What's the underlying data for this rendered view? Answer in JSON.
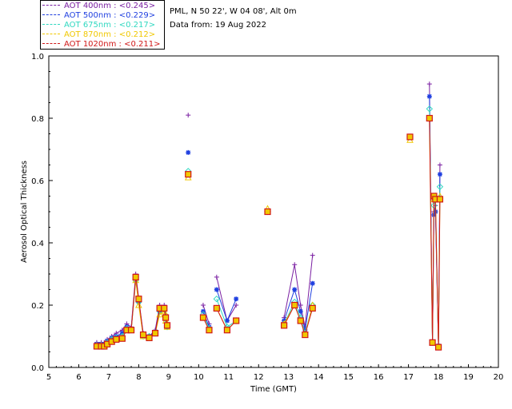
{
  "header": {
    "site_line": "PML, N 50 22', W 04 08', Alt 0m",
    "date_line": "Data from: 19 Aug 2022"
  },
  "chart_data": {
    "type": "line",
    "title": "",
    "xlabel": "Time (GMT)",
    "ylabel": "Aerosol Optical Thickness",
    "xlim": [
      5,
      20
    ],
    "ylim": [
      0.0,
      1.0
    ],
    "xticks": [
      "5",
      "6",
      "7",
      "8",
      "9",
      "10",
      "11",
      "12",
      "13",
      "14",
      "15",
      "16",
      "17",
      "18",
      "19",
      "20"
    ],
    "yticks": [
      "0.0",
      "0.2",
      "0.4",
      "0.6",
      "0.8",
      "1.0"
    ],
    "grid": false,
    "legend_position": "top-left",
    "series": [
      {
        "name": "AOT  400nm : <0.245>",
        "color": "#7a1fa2",
        "marker": "plus",
        "points": [
          [
            6.6,
            0.08
          ],
          [
            6.75,
            0.08
          ],
          [
            6.85,
            0.08
          ],
          [
            6.95,
            0.09
          ],
          [
            7.1,
            0.1
          ],
          [
            7.25,
            0.11
          ],
          [
            7.45,
            0.12
          ],
          [
            7.6,
            0.14
          ],
          [
            7.75,
            0.13
          ],
          [
            7.9,
            0.3
          ],
          [
            8.0,
            0.22
          ],
          [
            8.15,
            0.11
          ],
          [
            8.35,
            0.1
          ],
          [
            8.55,
            0.12
          ],
          [
            8.7,
            0.2
          ],
          [
            8.85,
            0.2
          ],
          [
            8.9,
            0.17
          ],
          [
            8.95,
            0.14
          ],
          null,
          [
            9.65,
            0.81
          ],
          null,
          [
            10.15,
            0.2
          ],
          [
            10.35,
            0.14
          ],
          null,
          [
            10.6,
            0.29
          ],
          [
            10.95,
            0.15
          ],
          [
            11.25,
            0.2
          ],
          null,
          [
            12.3,
            0.5
          ],
          null,
          [
            12.85,
            0.16
          ],
          [
            13.2,
            0.33
          ],
          [
            13.4,
            0.2
          ],
          [
            13.55,
            0.13
          ],
          [
            13.8,
            0.36
          ],
          null,
          [
            17.05,
            0.74
          ],
          null,
          [
            17.7,
            0.91
          ],
          [
            17.8,
            0.08
          ],
          [
            17.85,
            0.5
          ],
          [
            17.9,
            0.52
          ],
          [
            18.0,
            0.07
          ],
          [
            18.05,
            0.65
          ]
        ]
      },
      {
        "name": "AOT  500nm : <0.229>",
        "color": "#1f3fe0",
        "marker": "asterisk",
        "points": [
          [
            6.6,
            0.075
          ],
          [
            6.75,
            0.075
          ],
          [
            6.85,
            0.075
          ],
          [
            6.95,
            0.085
          ],
          [
            7.1,
            0.095
          ],
          [
            7.25,
            0.1
          ],
          [
            7.45,
            0.11
          ],
          [
            7.6,
            0.13
          ],
          [
            7.75,
            0.12
          ],
          [
            7.9,
            0.29
          ],
          [
            8.0,
            0.21
          ],
          [
            8.15,
            0.105
          ],
          [
            8.35,
            0.1
          ],
          [
            8.55,
            0.115
          ],
          [
            8.7,
            0.18
          ],
          [
            8.85,
            0.19
          ],
          [
            8.9,
            0.16
          ],
          [
            8.95,
            0.13
          ],
          null,
          [
            9.65,
            0.69
          ],
          null,
          [
            10.15,
            0.18
          ],
          [
            10.35,
            0.13
          ],
          null,
          [
            10.6,
            0.25
          ],
          [
            10.95,
            0.15
          ],
          [
            11.25,
            0.22
          ],
          null,
          [
            12.3,
            0.5
          ],
          null,
          [
            12.85,
            0.15
          ],
          [
            13.2,
            0.25
          ],
          [
            13.4,
            0.18
          ],
          [
            13.55,
            0.12
          ],
          [
            13.8,
            0.27
          ],
          null,
          [
            17.05,
            0.74
          ],
          null,
          [
            17.7,
            0.87
          ],
          [
            17.8,
            0.08
          ],
          [
            17.85,
            0.49
          ],
          [
            17.9,
            0.5
          ],
          [
            18.0,
            0.07
          ],
          [
            18.05,
            0.62
          ]
        ]
      },
      {
        "name": "AOT  675nm : <0.217>",
        "color": "#2fd8c0",
        "marker": "diamond",
        "points": [
          [
            6.6,
            0.07
          ],
          [
            6.75,
            0.07
          ],
          [
            6.85,
            0.07
          ],
          [
            6.95,
            0.08
          ],
          [
            7.1,
            0.09
          ],
          [
            7.25,
            0.095
          ],
          [
            7.45,
            0.1
          ],
          [
            7.6,
            0.125
          ],
          [
            7.75,
            0.12
          ],
          [
            7.9,
            0.28
          ],
          [
            8.0,
            0.21
          ],
          [
            8.15,
            0.1
          ],
          [
            8.35,
            0.1
          ],
          [
            8.55,
            0.11
          ],
          [
            8.7,
            0.18
          ],
          [
            8.85,
            0.185
          ],
          [
            8.9,
            0.155
          ],
          [
            8.95,
            0.13
          ],
          null,
          [
            9.65,
            0.63
          ],
          null,
          [
            10.15,
            0.17
          ],
          [
            10.35,
            0.125
          ],
          null,
          [
            10.6,
            0.22
          ],
          [
            10.95,
            0.13
          ],
          [
            11.25,
            0.15
          ],
          null,
          [
            12.3,
            0.5
          ],
          null,
          [
            12.85,
            0.14
          ],
          [
            13.2,
            0.21
          ],
          [
            13.4,
            0.16
          ],
          [
            13.55,
            0.11
          ],
          [
            13.8,
            0.2
          ],
          null,
          [
            17.05,
            0.74
          ],
          null,
          [
            17.7,
            0.83
          ],
          [
            17.8,
            0.08
          ],
          [
            17.85,
            0.52
          ],
          [
            17.9,
            0.54
          ],
          [
            18.0,
            0.065
          ],
          [
            18.05,
            0.58
          ]
        ]
      },
      {
        "name": "AOT  870nm : <0.212>",
        "color": "#f0c800",
        "marker": "triangle",
        "points": [
          [
            6.6,
            0.07
          ],
          [
            6.75,
            0.07
          ],
          [
            6.85,
            0.07
          ],
          [
            6.95,
            0.075
          ],
          [
            7.1,
            0.085
          ],
          [
            7.25,
            0.09
          ],
          [
            7.45,
            0.095
          ],
          [
            7.6,
            0.12
          ],
          [
            7.75,
            0.12
          ],
          [
            7.9,
            0.28
          ],
          [
            8.0,
            0.2
          ],
          [
            8.15,
            0.1
          ],
          [
            8.35,
            0.095
          ],
          [
            8.55,
            0.11
          ],
          [
            8.7,
            0.17
          ],
          [
            8.85,
            0.18
          ],
          [
            8.9,
            0.15
          ],
          [
            8.95,
            0.13
          ],
          null,
          [
            9.65,
            0.61
          ],
          null,
          [
            10.15,
            0.16
          ],
          [
            10.35,
            0.12
          ],
          null,
          [
            10.6,
            0.19
          ],
          [
            10.95,
            0.12
          ],
          [
            11.25,
            0.15
          ],
          null,
          [
            12.3,
            0.51
          ],
          null,
          [
            12.85,
            0.14
          ],
          [
            13.2,
            0.2
          ],
          [
            13.4,
            0.15
          ],
          [
            13.55,
            0.105
          ],
          [
            13.8,
            0.2
          ],
          null,
          [
            17.05,
            0.73
          ],
          null,
          [
            17.7,
            0.8
          ],
          [
            17.8,
            0.08
          ],
          [
            17.85,
            0.54
          ],
          [
            17.9,
            0.55
          ],
          [
            18.0,
            0.065
          ],
          [
            18.05,
            0.55
          ]
        ]
      },
      {
        "name": "AOT 1020nm : <0.211>",
        "color": "#d01818",
        "marker": "square",
        "points": [
          [
            6.6,
            0.068
          ],
          [
            6.75,
            0.068
          ],
          [
            6.85,
            0.068
          ],
          [
            6.95,
            0.075
          ],
          [
            7.1,
            0.083
          ],
          [
            7.25,
            0.09
          ],
          [
            7.45,
            0.093
          ],
          [
            7.6,
            0.12
          ],
          [
            7.75,
            0.12
          ],
          [
            7.9,
            0.29
          ],
          [
            8.0,
            0.22
          ],
          [
            8.15,
            0.105
          ],
          [
            8.35,
            0.095
          ],
          [
            8.55,
            0.11
          ],
          [
            8.7,
            0.19
          ],
          [
            8.85,
            0.19
          ],
          [
            8.9,
            0.16
          ],
          [
            8.95,
            0.135
          ],
          null,
          [
            9.65,
            0.62
          ],
          null,
          [
            10.15,
            0.16
          ],
          [
            10.35,
            0.12
          ],
          null,
          [
            10.6,
            0.19
          ],
          [
            10.95,
            0.12
          ],
          [
            11.25,
            0.15
          ],
          null,
          [
            12.3,
            0.5
          ],
          null,
          [
            12.85,
            0.135
          ],
          [
            13.2,
            0.2
          ],
          [
            13.4,
            0.15
          ],
          [
            13.55,
            0.105
          ],
          [
            13.8,
            0.19
          ],
          null,
          [
            17.05,
            0.74
          ],
          null,
          [
            17.7,
            0.8
          ],
          [
            17.8,
            0.08
          ],
          [
            17.85,
            0.55
          ],
          [
            17.9,
            0.54
          ],
          [
            18.0,
            0.065
          ],
          [
            18.05,
            0.54
          ]
        ]
      }
    ]
  }
}
